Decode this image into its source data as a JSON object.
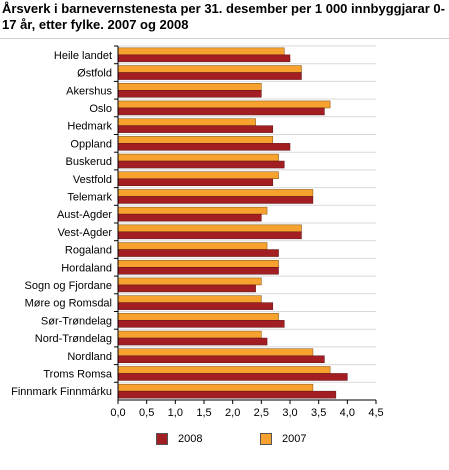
{
  "chart_data": {
    "type": "bar",
    "orientation": "horizontal",
    "title": "Årsverk i barnevernstenesta per 31. desember per 1 000 innbyggjarar 0-17 år, etter fylke. 2007 og 2008",
    "categories": [
      "Heile landet",
      "Østfold",
      "Akershus",
      "Oslo",
      "Hedmark",
      "Oppland",
      "Buskerud",
      "Vestfold",
      "Telemark",
      "Aust-Agder",
      "Vest-Agder",
      "Rogaland",
      "Hordaland",
      "Sogn og Fjordane",
      "Møre og Romsdal",
      "Sør-Trøndelag",
      "Nord-Trøndelag",
      "Nordland",
      "Troms Romsa",
      "Finnmark Finnmárku"
    ],
    "series": [
      {
        "name": "2007",
        "color": "#f7a12f",
        "values": [
          2.9,
          3.2,
          2.5,
          3.7,
          2.4,
          2.7,
          2.8,
          2.8,
          3.4,
          2.6,
          3.2,
          2.6,
          2.8,
          2.5,
          2.5,
          2.8,
          2.5,
          3.4,
          3.7,
          3.4
        ]
      },
      {
        "name": "2008",
        "color": "#a31e22",
        "values": [
          3.0,
          3.2,
          2.5,
          3.6,
          2.7,
          3.0,
          2.9,
          2.7,
          3.4,
          2.5,
          3.2,
          2.8,
          2.8,
          2.4,
          2.7,
          2.9,
          2.6,
          3.6,
          4.0,
          3.8
        ]
      }
    ],
    "xlim": [
      0,
      4.5
    ],
    "xticks": [
      "0,0",
      "0,5",
      "1,0",
      "1,5",
      "2,0",
      "2,5",
      "3,0",
      "3,5",
      "4,0",
      "4,5"
    ],
    "grid": true,
    "legend_position": "bottom",
    "legend": [
      "2008",
      "2007"
    ]
  }
}
